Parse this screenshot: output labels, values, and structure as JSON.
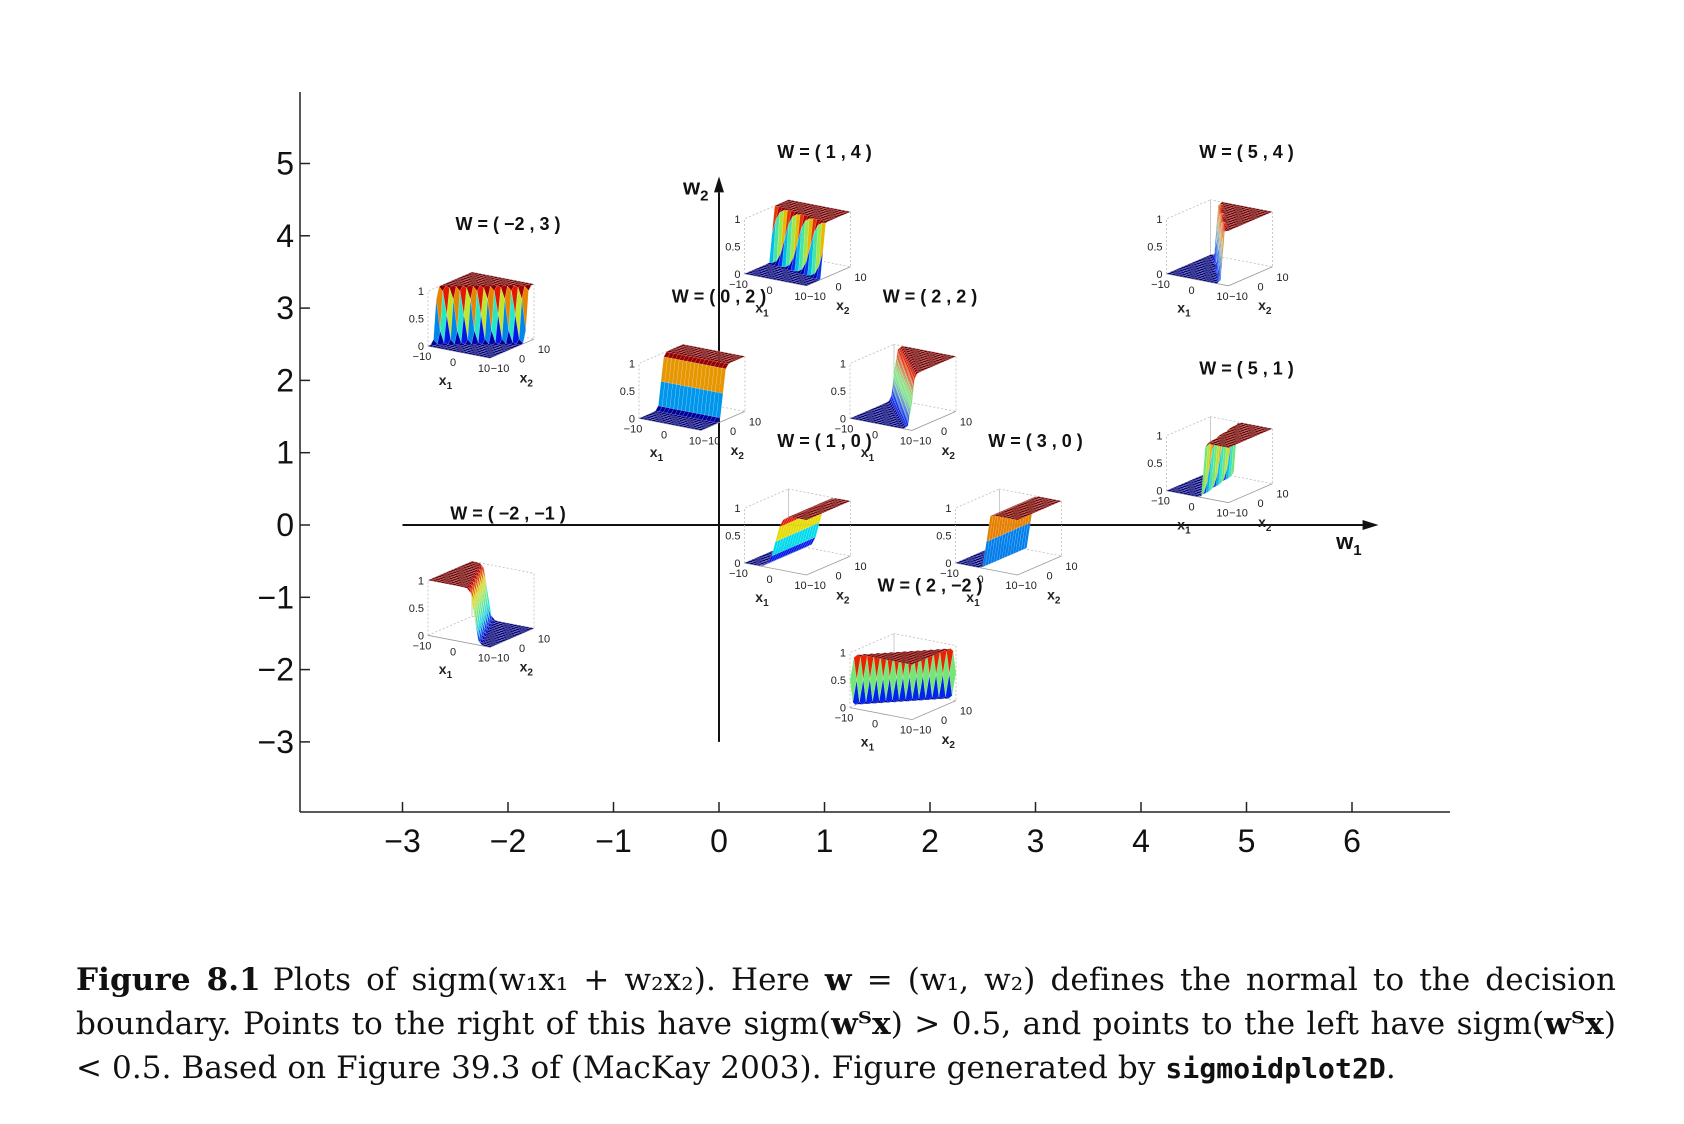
{
  "chart_data": {
    "type": "scatter",
    "description_axes": {
      "x_ticks": [
        "−3",
        "−2",
        "−1",
        "0",
        "1",
        "2",
        "3",
        "4",
        "5",
        "6"
      ],
      "y_ticks": [
        "5",
        "4",
        "3",
        "2",
        "1",
        "0",
        "−1",
        "−2",
        "−3"
      ],
      "xlim": [
        -4,
        7
      ],
      "ylim": [
        -4,
        6
      ]
    },
    "weight_axes": {
      "x_label": "w",
      "x_sub": "1",
      "y_label": "w",
      "y_sub": "2"
    },
    "points": [
      {
        "title": "W = ( −2 , 3 )",
        "w1": -2,
        "w2": 3
      },
      {
        "title": "W = ( 1 , 4 )",
        "w1": 1,
        "w2": 4
      },
      {
        "title": "W = ( 5 , 4 )",
        "w1": 5,
        "w2": 4
      },
      {
        "title": "W = ( 0 , 2 )",
        "w1": 0,
        "w2": 2
      },
      {
        "title": "W = ( 2 , 2 )",
        "w1": 2,
        "w2": 2
      },
      {
        "title": "W = ( 5 , 1 )",
        "w1": 5,
        "w2": 1
      },
      {
        "title": "W = ( 1 , 0 )",
        "w1": 1,
        "w2": 0
      },
      {
        "title": "W = ( 3 , 0 )",
        "w1": 3,
        "w2": 0
      },
      {
        "title": "W = ( −2 , −1 )",
        "w1": -2,
        "w2": -1
      },
      {
        "title": "W = ( 2 , −2 )",
        "w1": 2,
        "w2": -2
      }
    ],
    "inset": {
      "z_ticks": [
        "1",
        "0.5",
        "0"
      ],
      "x1_ticks": [
        "−10",
        "0",
        "10"
      ],
      "x2_ticks": [
        "−10",
        "0",
        "10"
      ],
      "x1_label": "x",
      "x1_sub": "1",
      "x2_label": "x",
      "x2_sub": "2"
    }
  },
  "caption": {
    "label": "Figure 8.1",
    "text_part1": "Plots of sigm(w₁x₁ + w₂x₂). Here ",
    "w_bold": "w",
    "text_part2": " = (w₁, w₂) defines the normal to the decision boundary. Points to the right of this have sigm(",
    "wt1": "wᵀx",
    "text_part3": ") > 0.5, and points to the left have sigm(",
    "wt2": "wᵀx",
    "text_part4": ") < 0.5. Based on Figure 39.3 of (MacKay 2003). Figure generated by ",
    "code": "sigmoidplot2D",
    "text_part5": "."
  }
}
